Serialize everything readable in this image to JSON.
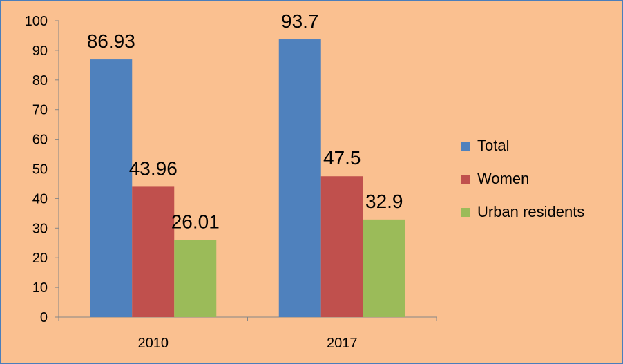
{
  "chart_data": {
    "type": "bar",
    "title": "",
    "xlabel": "",
    "ylabel": "",
    "categories": [
      "2010",
      "2017"
    ],
    "series": [
      {
        "name": "Total",
        "values": [
          86.93,
          93.7
        ],
        "labels": [
          "86.93",
          "93.7"
        ],
        "color": "#4f81bd"
      },
      {
        "name": "Women",
        "values": [
          43.96,
          47.5
        ],
        "labels": [
          "43.96",
          "47.5"
        ],
        "color": "#c0504d"
      },
      {
        "name": "Urban residents",
        "values": [
          26.01,
          32.9
        ],
        "labels": [
          "26.01",
          "32.9"
        ],
        "color": "#9bbb59"
      }
    ],
    "ylim": [
      0,
      100
    ],
    "yticks": [
      "0",
      "10",
      "20",
      "30",
      "40",
      "50",
      "60",
      "70",
      "80",
      "90",
      "100"
    ],
    "grid": false,
    "legend_position": "right",
    "background_color": "#fac090",
    "border_color": "#4a7ebb"
  }
}
